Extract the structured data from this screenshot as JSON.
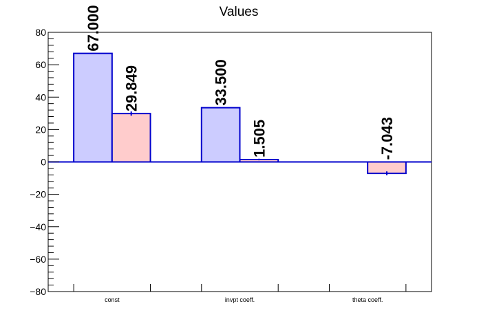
{
  "chart_data": {
    "type": "bar",
    "title": "Values",
    "categories": [
      "const",
      "invpt coeff.",
      "theta coeff."
    ],
    "series": [
      {
        "values": [
          67.0,
          33.5,
          0
        ],
        "errors": [
          0,
          0,
          0
        ],
        "labels": [
          "67.000",
          "33.500",
          ""
        ],
        "fill": "#ccccff",
        "stroke": "#0000cc"
      },
      {
        "values": [
          29.849,
          1.505,
          -7.043
        ],
        "errors": [
          1.3,
          0.5,
          1.2
        ],
        "labels": [
          "29.849",
          "1.505",
          "-7.043"
        ],
        "fill": "#ffcccc",
        "stroke": "#0000cc"
      }
    ],
    "ylim": [
      -80,
      80
    ],
    "yticks": [
      -80,
      -60,
      -40,
      -20,
      0,
      20,
      40,
      60,
      80
    ],
    "ytick_labels": [
      "−80",
      "−60",
      "−40",
      "−20",
      "0",
      "20",
      "40",
      "60",
      "80"
    ],
    "xlabel": "",
    "ylabel": "",
    "grid": false,
    "legend": "none"
  }
}
